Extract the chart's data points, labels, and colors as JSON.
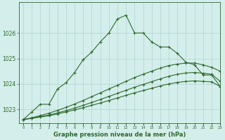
{
  "bg_color": "#d4eeeb",
  "grid_color": "#b0d4d0",
  "line_color": "#2d6a2d",
  "text_color": "#2d6a2d",
  "xlabel": "Graphe pression niveau de la mer (hPa)",
  "xlim": [
    -0.5,
    23
  ],
  "ylim": [
    1022.45,
    1027.2
  ],
  "yticks": [
    1023,
    1024,
    1025,
    1026
  ],
  "xticks": [
    0,
    1,
    2,
    3,
    4,
    5,
    6,
    7,
    8,
    9,
    10,
    11,
    12,
    13,
    14,
    15,
    16,
    17,
    18,
    19,
    20,
    21,
    22,
    23
  ],
  "series1_x": [
    0,
    1,
    2,
    3,
    4,
    5,
    6,
    7,
    8,
    9,
    10,
    11,
    12,
    13,
    14,
    15,
    16,
    17,
    18,
    19,
    20,
    21,
    22,
    23
  ],
  "series1_y": [
    1022.6,
    1022.9,
    1023.2,
    1023.2,
    1023.8,
    1024.05,
    1024.45,
    1024.95,
    1025.25,
    1025.65,
    1026.0,
    1026.55,
    1026.7,
    1026.0,
    1026.0,
    1025.65,
    1025.45,
    1025.45,
    1025.2,
    1024.85,
    1024.75,
    1024.35,
    1024.35,
    1023.9
  ],
  "series2_x": [
    0,
    1,
    2,
    3,
    4,
    5,
    6,
    7,
    8,
    9,
    10,
    11,
    12,
    13,
    14,
    15,
    16,
    17,
    18,
    19,
    20,
    21,
    22,
    23
  ],
  "series2_y": [
    1022.6,
    1022.65,
    1022.7,
    1022.75,
    1022.82,
    1022.9,
    1022.98,
    1023.07,
    1023.16,
    1023.25,
    1023.35,
    1023.45,
    1023.55,
    1023.65,
    1023.74,
    1023.83,
    1023.92,
    1024.0,
    1024.06,
    1024.1,
    1024.12,
    1024.1,
    1024.08,
    1023.9
  ],
  "series3_x": [
    0,
    1,
    2,
    3,
    4,
    5,
    6,
    7,
    8,
    9,
    10,
    11,
    12,
    13,
    14,
    15,
    16,
    17,
    18,
    19,
    20,
    21,
    22,
    23
  ],
  "series3_y": [
    1022.6,
    1022.65,
    1022.72,
    1022.78,
    1022.86,
    1022.95,
    1023.05,
    1023.16,
    1023.27,
    1023.39,
    1023.51,
    1023.63,
    1023.75,
    1023.87,
    1023.98,
    1024.09,
    1024.2,
    1024.3,
    1024.38,
    1024.43,
    1024.45,
    1024.42,
    1024.38,
    1024.1
  ],
  "series4_x": [
    0,
    1,
    2,
    3,
    4,
    5,
    6,
    7,
    8,
    9,
    10,
    11,
    12,
    13,
    14,
    15,
    16,
    17,
    18,
    19,
    20,
    21,
    22,
    23
  ],
  "series4_y": [
    1022.6,
    1022.67,
    1022.76,
    1022.85,
    1022.96,
    1023.08,
    1023.21,
    1023.35,
    1023.5,
    1023.65,
    1023.8,
    1023.95,
    1024.1,
    1024.25,
    1024.38,
    1024.5,
    1024.62,
    1024.72,
    1024.78,
    1024.82,
    1024.82,
    1024.75,
    1024.65,
    1024.5
  ]
}
